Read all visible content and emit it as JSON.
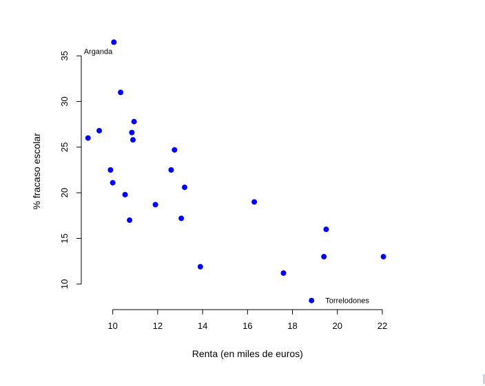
{
  "chart_data": {
    "type": "scatter",
    "xlabel": "Renta (en miles de euros)",
    "ylabel": "% fracaso escolar",
    "xlim": [
      8.6,
      22.4
    ],
    "ylim": [
      7.2,
      37.5
    ],
    "x_ticks": [
      "10",
      "12",
      "14",
      "16",
      "18",
      "20",
      "22"
    ],
    "y_ticks": [
      "10",
      "15",
      "20",
      "25",
      "30",
      "35"
    ],
    "grid": false,
    "point_color": "#0000ff",
    "series": [
      {
        "points": [
          {
            "x": 8.9,
            "y": 26.0
          },
          {
            "x": 9.4,
            "y": 26.8
          },
          {
            "x": 9.9,
            "y": 22.5
          },
          {
            "x": 10.0,
            "y": 21.1
          },
          {
            "x": 10.05,
            "y": 36.5
          },
          {
            "x": 10.35,
            "y": 31.0
          },
          {
            "x": 10.55,
            "y": 19.8
          },
          {
            "x": 10.75,
            "y": 17.0
          },
          {
            "x": 10.85,
            "y": 26.6
          },
          {
            "x": 10.9,
            "y": 25.8
          },
          {
            "x": 10.95,
            "y": 27.8
          },
          {
            "x": 11.9,
            "y": 18.7
          },
          {
            "x": 12.6,
            "y": 22.5
          },
          {
            "x": 12.75,
            "y": 24.7
          },
          {
            "x": 13.05,
            "y": 17.2
          },
          {
            "x": 13.2,
            "y": 20.6
          },
          {
            "x": 13.9,
            "y": 11.9
          },
          {
            "x": 16.3,
            "y": 19.0
          },
          {
            "x": 17.6,
            "y": 11.2
          },
          {
            "x": 18.85,
            "y": 8.2
          },
          {
            "x": 19.4,
            "y": 13.0
          },
          {
            "x": 19.5,
            "y": 16.0
          },
          {
            "x": 22.05,
            "y": 13.0
          }
        ]
      }
    ],
    "annotations": [
      {
        "text": "Arganda",
        "x": 10.05,
        "y": 36.5,
        "anchor": "end"
      },
      {
        "text": "Torrelodones",
        "x": 18.85,
        "y": 8.2,
        "anchor": "start"
      }
    ]
  }
}
